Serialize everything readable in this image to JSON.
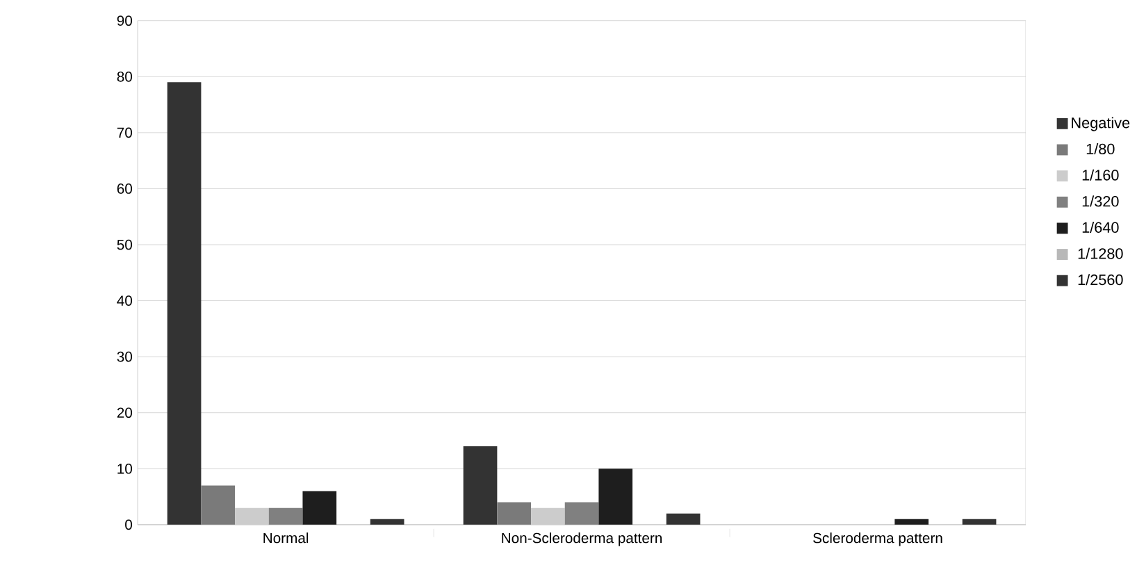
{
  "chart_data": {
    "type": "bar",
    "categories": [
      "Normal",
      "Non-Scleroderma pattern",
      "Scleroderma pattern"
    ],
    "series": [
      {
        "name": "Negative",
        "color": "#333333",
        "values": [
          79,
          14,
          0
        ]
      },
      {
        "name": "1/80",
        "color": "#7a7a7a",
        "values": [
          7,
          4,
          0
        ]
      },
      {
        "name": "1/160",
        "color": "#cccccc",
        "values": [
          3,
          3,
          0
        ]
      },
      {
        "name": "1/320",
        "color": "#808080",
        "values": [
          3,
          4,
          0
        ]
      },
      {
        "name": "1/640",
        "color": "#1e1e1e",
        "values": [
          6,
          10,
          1
        ]
      },
      {
        "name": "1/1280",
        "color": "#b8b8b8",
        "values": [
          0,
          0,
          0
        ]
      },
      {
        "name": "1/2560",
        "color": "#333333",
        "values": [
          1,
          2,
          1
        ]
      }
    ],
    "ylim": [
      0,
      90
    ],
    "yticks": [
      0,
      10,
      20,
      30,
      40,
      50,
      60,
      70,
      80,
      90
    ],
    "grid": "y",
    "legend": "right"
  }
}
